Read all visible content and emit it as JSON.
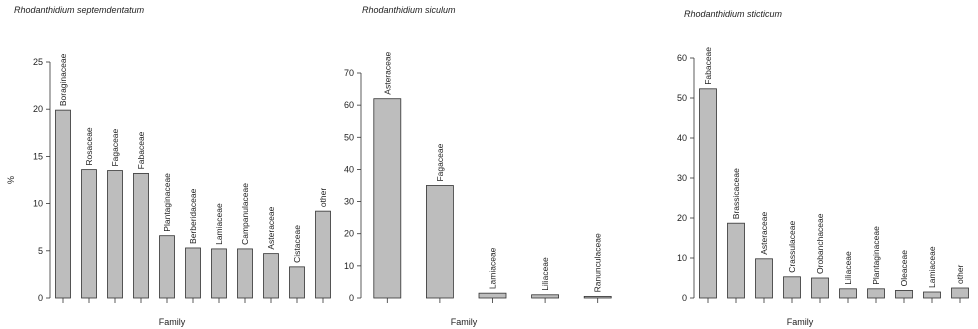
{
  "chart_data": [
    {
      "type": "bar",
      "title": "Rhodanthidium septemdentatum",
      "xlabel": "Family",
      "ylabel": "%",
      "ylim": [
        0,
        25
      ],
      "yticks": [
        0,
        5,
        10,
        15,
        20,
        25
      ],
      "categories": [
        "Boraginaceae",
        "Rosaceae",
        "Fagaceae",
        "Fabaceae",
        "Plantaginaceae",
        "Berberidaceae",
        "Lamiaceae",
        "Campanulaceae",
        "Asteraceae",
        "Cistaceae",
        "other"
      ],
      "values": [
        19.9,
        13.6,
        13.5,
        13.2,
        6.6,
        5.3,
        5.2,
        5.2,
        4.7,
        3.3,
        9.2
      ],
      "grid": false,
      "bar_color": "#bdbdbd"
    },
    {
      "type": "bar",
      "title": "Rhodanthidium siculum",
      "xlabel": "Family",
      "ylabel": "",
      "ylim": [
        0,
        70
      ],
      "yticks": [
        0,
        10,
        20,
        30,
        40,
        50,
        60,
        70
      ],
      "categories": [
        "Asteraceae",
        "Fagaceae",
        "Lamiaceae",
        "Liliaceae",
        "Ranunculaceae"
      ],
      "values": [
        62,
        35,
        1.5,
        1.0,
        0.5
      ],
      "grid": false,
      "bar_color": "#bdbdbd"
    },
    {
      "type": "bar",
      "title": "Rhodanthidium sticticum",
      "xlabel": "Family",
      "ylabel": "",
      "ylim": [
        0,
        60
      ],
      "yticks": [
        0,
        10,
        20,
        30,
        40,
        50,
        60
      ],
      "categories": [
        "Fabaceae",
        "Brassicaceae",
        "Asteraceae",
        "Crassulaceae",
        "Orobanchaceae",
        "Liliaceae",
        "Plantaginaceae",
        "Oleaceae",
        "Lamiaceae",
        "other"
      ],
      "values": [
        52.3,
        18.7,
        9.8,
        5.3,
        5.0,
        2.3,
        2.3,
        1.9,
        1.5,
        2.5
      ],
      "grid": false,
      "bar_color": "#bdbdbd"
    }
  ]
}
